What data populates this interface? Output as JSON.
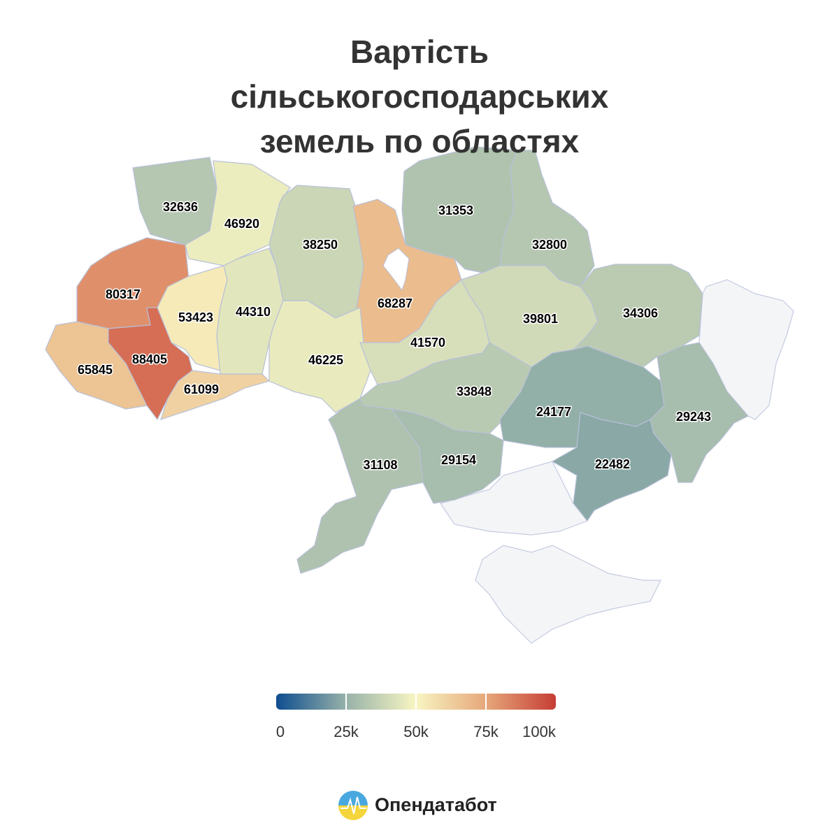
{
  "chart_data": {
    "type": "choropleth",
    "title": "Вартість сільськогосподарських земель по областях",
    "values": [
      32636,
      46920,
      38250,
      68287,
      31353,
      32800,
      80317,
      53423,
      44310,
      46225,
      41570,
      39801,
      34306,
      65845,
      88405,
      61099,
      33848,
      24177,
      29243,
      31108,
      29154,
      22482
    ],
    "colorscale": [
      "#0e4d8f",
      "#97b2a9",
      "#f8f5c2",
      "#e6a77a",
      "#c63d35"
    ],
    "colorbar": {
      "lim": [
        0,
        100000
      ],
      "ticks": [
        0,
        {
          "value": 25000,
          "label": "25k"
        },
        {
          "value": 50000,
          "label": "50k"
        },
        {
          "value": 75000,
          "label": "75k"
        },
        {
          "value": 100000,
          "label": "100k"
        }
      ]
    }
  },
  "brand": "Опендатабот"
}
